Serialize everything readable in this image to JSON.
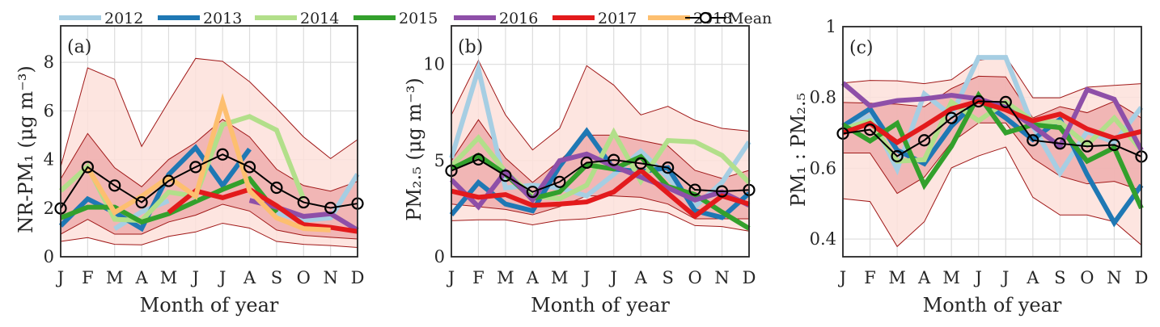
{
  "legend": {
    "entries": [
      {
        "label": "2012",
        "color": "#a6cee3"
      },
      {
        "label": "2013",
        "color": "#1f78b4"
      },
      {
        "label": "2014",
        "color": "#b2df8a"
      },
      {
        "label": "2015",
        "color": "#33a02c"
      },
      {
        "label": "2016",
        "color": "#8e4fa8"
      },
      {
        "label": "2017",
        "color": "#e31a1c"
      },
      {
        "label": "2018",
        "color": "#fdbf6f"
      },
      {
        "label": "Mean",
        "color": "#000000",
        "marker": "circle"
      }
    ],
    "placement": "top"
  },
  "band_colors": {
    "outer": "#fde0da",
    "inner": "#eeaaaa",
    "edge": "#a01818"
  },
  "chart_data": [
    {
      "type": "line",
      "panel_label": "(a)",
      "xlabel": "Month of year",
      "ylabel": "NR-PM₁ (μg m⁻³)",
      "categories": [
        "J",
        "F",
        "M",
        "A",
        "M",
        "J",
        "J",
        "A",
        "S",
        "O",
        "N",
        "D"
      ],
      "ylim": [
        0,
        9.5
      ],
      "yticks": [
        0,
        2,
        4,
        6,
        8
      ],
      "grid": true,
      "bands": {
        "outer_upper": [
          3.7,
          7.77,
          7.3,
          4.54,
          6.38,
          8.16,
          8.04,
          7.2,
          6.1,
          4.93,
          4.04,
          4.82
        ],
        "inner_upper": [
          3.2,
          5.07,
          3.66,
          2.88,
          4.0,
          4.7,
          5.65,
          4.93,
          3.6,
          2.93,
          2.7,
          3.1
        ],
        "inner_lower": [
          0.93,
          1.54,
          0.93,
          0.93,
          1.43,
          1.71,
          2.16,
          1.88,
          1.1,
          0.88,
          0.8,
          0.73
        ],
        "outer_lower": [
          0.63,
          0.79,
          0.51,
          0.49,
          0.84,
          1.02,
          1.38,
          1.18,
          0.63,
          0.51,
          0.46,
          0.38
        ]
      },
      "series": [
        {
          "name": "2012",
          "values": [
            null,
            null,
            1.15,
            1.85,
            2.3,
            null,
            null,
            null,
            1.8,
            1.5,
            1.6,
            3.4
          ]
        },
        {
          "name": "2013",
          "values": [
            1.27,
            2.38,
            1.82,
            1.16,
            3.38,
            4.49,
            2.93,
            4.43,
            null,
            null,
            null,
            null
          ]
        },
        {
          "name": "2014",
          "values": [
            2.71,
            3.71,
            1.54,
            1.49,
            2.66,
            2.49,
            5.43,
            5.77,
            5.21,
            2.38,
            null,
            null
          ]
        },
        {
          "name": "2015",
          "values": [
            1.6,
            2.04,
            2.04,
            1.43,
            1.77,
            2.27,
            2.77,
            3.21,
            1.82,
            null,
            null,
            null
          ]
        },
        {
          "name": "2016",
          "values": [
            null,
            null,
            null,
            null,
            null,
            null,
            null,
            2.32,
            2.04,
            1.66,
            1.77,
            1.1
          ]
        },
        {
          "name": "2017",
          "values": [
            null,
            null,
            null,
            null,
            1.82,
            2.71,
            2.43,
            2.77,
            2.1,
            1.32,
            1.21,
            1.04
          ]
        },
        {
          "name": "2018",
          "values": [
            null,
            3.66,
            1.82,
            2.49,
            3.27,
            2.49,
            6.38,
            2.71,
            1.6,
            1.16,
            1.1,
            null
          ]
        },
        {
          "name": "Mean",
          "values": [
            1.99,
            3.69,
            2.93,
            2.24,
            3.12,
            3.69,
            4.21,
            3.69,
            2.84,
            2.24,
            2.01,
            2.19
          ]
        }
      ]
    },
    {
      "type": "line",
      "panel_label": "(b)",
      "xlabel": "Month of year",
      "ylabel": "PM₂.₅ (μg m⁻³)",
      "categories": [
        "J",
        "F",
        "M",
        "A",
        "M",
        "J",
        "J",
        "A",
        "S",
        "O",
        "N",
        "D"
      ],
      "ylim": [
        0,
        12
      ],
      "yticks": [
        0,
        5,
        10
      ],
      "grid": true,
      "bands": {
        "outer_upper": [
          7.37,
          10.2,
          7.37,
          5.55,
          6.67,
          9.93,
          8.92,
          7.37,
          7.82,
          7.09,
          6.67,
          6.53
        ],
        "inner_upper": [
          4.99,
          7.12,
          5.13,
          3.86,
          4.99,
          6.32,
          6.32,
          6.04,
          5.76,
          4.49,
          4.07,
          4.49
        ],
        "inner_lower": [
          2.74,
          2.6,
          2.46,
          2.18,
          2.6,
          3.16,
          3.16,
          3.09,
          2.74,
          1.97,
          1.97,
          1.97
        ],
        "outer_lower": [
          1.87,
          1.92,
          1.92,
          1.66,
          1.9,
          1.97,
          2.2,
          2.49,
          2.28,
          1.62,
          1.57,
          1.33
        ]
      },
      "series": [
        {
          "name": "2012",
          "values": [
            5.13,
            9.76,
            3.58,
            3.72,
            3.58,
            3.16,
            4.28,
            5.48,
            4.14,
            2.6,
            3.86,
            5.97
          ]
        },
        {
          "name": "2013",
          "values": [
            2.18,
            3.86,
            2.74,
            2.39,
            4.7,
            6.53,
            4.56,
            4.42,
            4.63,
            2.39,
            2.04,
            3.3
          ]
        },
        {
          "name": "2014",
          "values": [
            4.7,
            6.18,
            4.42,
            3.16,
            3.02,
            3.72,
            6.46,
            3.93,
            6.04,
            5.97,
            5.27,
            3.86
          ]
        },
        {
          "name": "2015",
          "values": [
            4.56,
            5.27,
            4.28,
            3.02,
            3.37,
            4.78,
            4.56,
            5.2,
            3.65,
            3.23,
            2.32,
            1.47
          ]
        },
        {
          "name": "2016",
          "values": [
            4.0,
            2.6,
            4.42,
            2.95,
            4.99,
            5.34,
            4.7,
            4.14,
            3.58,
            2.95,
            3.37,
            2.67
          ]
        },
        {
          "name": "2017",
          "values": [
            3.41,
            3.09,
            3.23,
            2.67,
            2.74,
            2.85,
            3.37,
            4.49,
            3.3,
            2.11,
            3.16,
            2.74
          ]
        },
        {
          "name": "Mean",
          "values": [
            4.47,
            5.06,
            4.21,
            3.37,
            3.89,
            4.89,
            5.03,
            4.85,
            4.63,
            3.48,
            3.4,
            3.47
          ]
        }
      ]
    },
    {
      "type": "line",
      "panel_label": "(c)",
      "xlabel": "Month of year",
      "ylabel": "PM₁ : PM₂.₅",
      "categories": [
        "J",
        "F",
        "M",
        "A",
        "M",
        "J",
        "J",
        "A",
        "S",
        "O",
        "N",
        "D"
      ],
      "ylim": [
        0.35,
        1
      ],
      "yticks": [
        0.4,
        0.6,
        0.8,
        1
      ],
      "grid": true,
      "bands": {
        "outer_upper": [
          0.841,
          0.848,
          0.847,
          0.839,
          0.85,
          0.905,
          0.916,
          0.799,
          0.799,
          0.829,
          0.834,
          0.839
        ],
        "inner_upper": [
          0.786,
          0.784,
          0.781,
          0.774,
          0.825,
          0.86,
          0.858,
          0.742,
          0.774,
          0.757,
          0.789,
          0.742
        ],
        "inner_lower": [
          0.643,
          0.643,
          0.529,
          0.575,
          0.673,
          0.728,
          0.728,
          0.628,
          0.578,
          0.556,
          0.563,
          0.537
        ],
        "outer_lower": [
          0.514,
          0.506,
          0.379,
          0.449,
          0.601,
          0.635,
          0.66,
          0.518,
          0.468,
          0.468,
          0.449,
          0.383
        ]
      },
      "series": [
        {
          "name": "2012",
          "values": [
            0.711,
            0.749,
            0.597,
            0.81,
            0.749,
            0.913,
            0.913,
            0.719,
            0.586,
            0.704,
            0.673,
            0.772
          ]
        },
        {
          "name": "2013",
          "values": [
            0.719,
            0.768,
            0.651,
            0.613,
            0.719,
            0.795,
            0.742,
            0.681,
            0.738,
            0.582,
            0.446,
            0.552
          ]
        },
        {
          "name": "2014",
          "values": [
            0.711,
            0.734,
            0.62,
            0.624,
            0.787,
            0.734,
            0.787,
            0.734,
            0.73,
            0.666,
            0.742,
            0.651
          ]
        },
        {
          "name": "2015",
          "values": [
            0.723,
            0.677,
            0.727,
            0.552,
            0.662,
            0.806,
            0.7,
            0.723,
            0.715,
            0.62,
            0.658,
            0.487
          ]
        },
        {
          "name": "2016",
          "values": [
            0.841,
            0.776,
            0.791,
            0.796,
            0.806,
            0.796,
            0.772,
            0.719,
            0.662,
            0.822,
            0.795,
            0.651
          ]
        },
        {
          "name": "2017",
          "values": [
            0.7,
            0.727,
            0.673,
            0.719,
            0.768,
            0.789,
            0.765,
            0.734,
            0.753,
            0.711,
            0.685,
            0.704
          ]
        },
        {
          "name": "Mean",
          "values": [
            0.698,
            0.709,
            0.634,
            0.679,
            0.742,
            0.789,
            0.787,
            0.679,
            0.67,
            0.662,
            0.666,
            0.633
          ]
        }
      ]
    }
  ]
}
